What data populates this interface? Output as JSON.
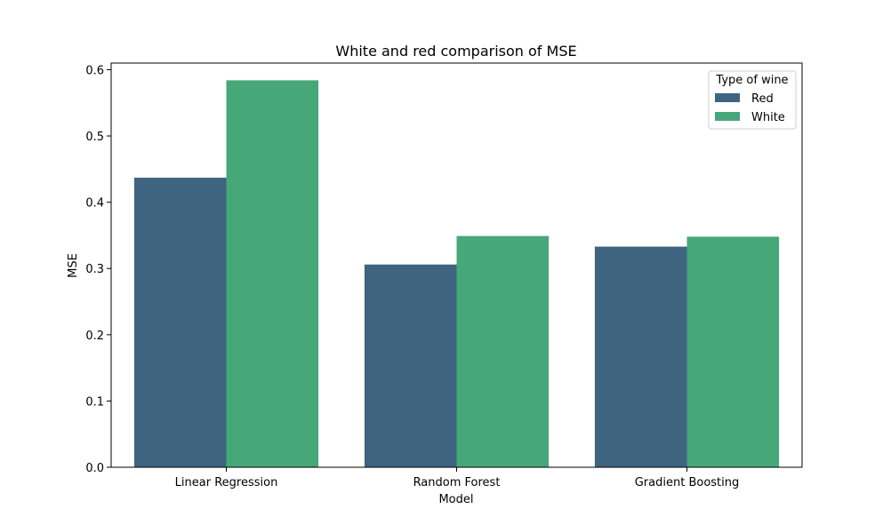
{
  "chart_data": {
    "type": "bar",
    "title": "White and red comparison of MSE",
    "xlabel": "Model",
    "ylabel": "MSE",
    "categories": [
      "Linear Regression",
      "Random Forest",
      "Gradient Boosting"
    ],
    "series": [
      {
        "name": "Red",
        "color": "#3e6480",
        "values": [
          0.437,
          0.306,
          0.333
        ]
      },
      {
        "name": "White",
        "color": "#46a879",
        "values": [
          0.584,
          0.349,
          0.348
        ]
      }
    ],
    "ylim": [
      0,
      0.61
    ],
    "yticks": [
      0.0,
      0.1,
      0.2,
      0.3,
      0.4,
      0.5,
      0.6
    ],
    "ytick_labels": [
      "0.0",
      "0.1",
      "0.2",
      "0.3",
      "0.4",
      "0.5",
      "0.6"
    ],
    "grid": false,
    "legend": {
      "title": "Type of wine",
      "placement": "top-right"
    }
  }
}
